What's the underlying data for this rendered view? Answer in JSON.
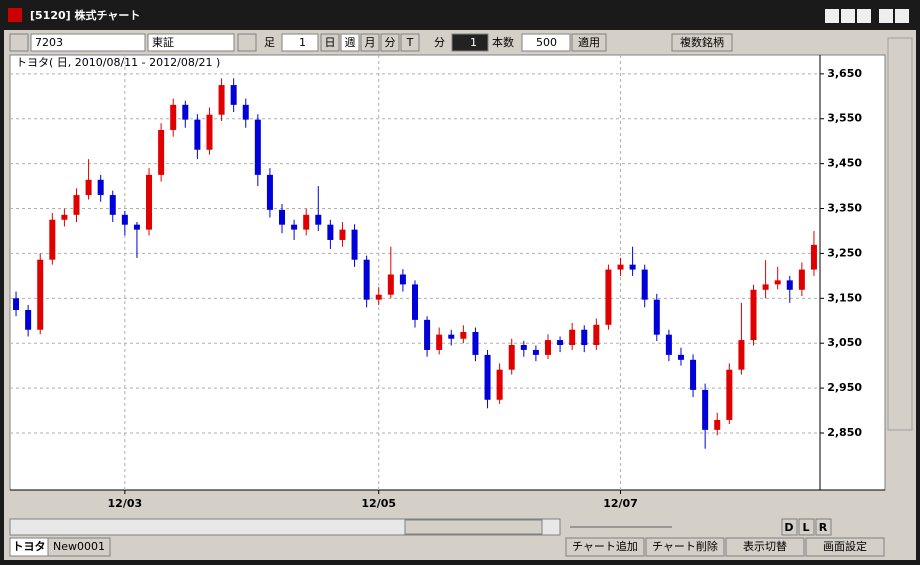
{
  "ui": {
    "window_title": "[5120] 株式チャート",
    "code": "7203",
    "market": "東証",
    "period_label": "足",
    "period_value": "1",
    "btn_day": "日",
    "btn_week": "週",
    "btn_month": "月",
    "btn_minute": "分",
    "btn_tick": "T",
    "minute_label": "分",
    "minute_value": "1",
    "count_label": "本数",
    "count_value": "500",
    "apply": "適用",
    "multi": "複数銘柄",
    "nav_d": "D",
    "nav_l": "L",
    "nav_r": "R",
    "tab_1": "トヨタ",
    "tab_2": "New0001",
    "add_chart": "チャート追加",
    "del_chart": "チャート削除",
    "toggle_view": "表示切替",
    "screen_settings": "画面設定"
  },
  "chart_data": {
    "type": "candlestick",
    "title": "トヨタ( 日, 2010/08/11 - 2012/08/21 )",
    "up_color": "#e00000",
    "down_color": "#0000d8",
    "grid": true,
    "categories": [
      null,
      null,
      null,
      null,
      null,
      null,
      null,
      null,
      null,
      "12/03",
      null,
      null,
      null,
      null,
      null,
      null,
      null,
      null,
      null,
      null,
      null,
      null,
      null,
      null,
      null,
      null,
      null,
      null,
      null,
      null,
      "12/05",
      null,
      null,
      null,
      null,
      null,
      null,
      null,
      null,
      null,
      null,
      null,
      null,
      null,
      null,
      null,
      null,
      null,
      null,
      null,
      "12/07",
      null,
      null,
      null,
      null,
      null,
      null,
      null,
      null,
      null,
      null,
      null,
      null,
      null,
      null,
      null,
      null
    ],
    "ohlc": [
      [
        3150,
        3165,
        3110,
        3124
      ],
      [
        3124,
        3135,
        3065,
        3080
      ],
      [
        3080,
        3250,
        3070,
        3236
      ],
      [
        3236,
        3340,
        3225,
        3325
      ],
      [
        3325,
        3350,
        3310,
        3336
      ],
      [
        3336,
        3395,
        3320,
        3380
      ],
      [
        3380,
        3460,
        3370,
        3414
      ],
      [
        3414,
        3425,
        3365,
        3380
      ],
      [
        3380,
        3390,
        3320,
        3336
      ],
      [
        3336,
        3345,
        3290,
        3314
      ],
      [
        3314,
        3320,
        3240,
        3303
      ],
      [
        3303,
        3440,
        3290,
        3425
      ],
      [
        3425,
        3540,
        3410,
        3525
      ],
      [
        3525,
        3595,
        3510,
        3581
      ],
      [
        3581,
        3590,
        3530,
        3548
      ],
      [
        3548,
        3560,
        3460,
        3481
      ],
      [
        3481,
        3575,
        3470,
        3559
      ],
      [
        3559,
        3640,
        3545,
        3625
      ],
      [
        3625,
        3640,
        3565,
        3581
      ],
      [
        3581,
        3595,
        3530,
        3548
      ],
      [
        3548,
        3560,
        3400,
        3425
      ],
      [
        3425,
        3440,
        3330,
        3347
      ],
      [
        3347,
        3360,
        3295,
        3314
      ],
      [
        3314,
        3325,
        3280,
        3303
      ],
      [
        3303,
        3350,
        3290,
        3336
      ],
      [
        3336,
        3400,
        3300,
        3314
      ],
      [
        3314,
        3325,
        3260,
        3280
      ],
      [
        3280,
        3320,
        3265,
        3303
      ],
      [
        3303,
        3315,
        3220,
        3236
      ],
      [
        3236,
        3245,
        3130,
        3147
      ],
      [
        3147,
        3175,
        3135,
        3158
      ],
      [
        3158,
        3265,
        3150,
        3203
      ],
      [
        3203,
        3215,
        3165,
        3181
      ],
      [
        3181,
        3190,
        3085,
        3102
      ],
      [
        3102,
        3110,
        3020,
        3035
      ],
      [
        3035,
        3085,
        3025,
        3069
      ],
      [
        3069,
        3080,
        3045,
        3060
      ],
      [
        3060,
        3090,
        3050,
        3075
      ],
      [
        3075,
        3085,
        3010,
        3024
      ],
      [
        3024,
        3035,
        2905,
        2924
      ],
      [
        2924,
        3005,
        2915,
        2991
      ],
      [
        2991,
        3060,
        2980,
        3046
      ],
      [
        3046,
        3055,
        3020,
        3035
      ],
      [
        3035,
        3045,
        3010,
        3024
      ],
      [
        3024,
        3070,
        3015,
        3057
      ],
      [
        3057,
        3065,
        3030,
        3046
      ],
      [
        3046,
        3095,
        3035,
        3080
      ],
      [
        3080,
        3090,
        3030,
        3046
      ],
      [
        3046,
        3105,
        3035,
        3091
      ],
      [
        3091,
        3225,
        3080,
        3214
      ],
      [
        3214,
        3240,
        3200,
        3225
      ],
      [
        3225,
        3265,
        3200,
        3214
      ],
      [
        3214,
        3225,
        3130,
        3147
      ],
      [
        3147,
        3160,
        3055,
        3069
      ],
      [
        3069,
        3080,
        3010,
        3024
      ],
      [
        3024,
        3040,
        3000,
        3013
      ],
      [
        3013,
        3025,
        2930,
        2946
      ],
      [
        2946,
        2960,
        2815,
        2857
      ],
      [
        2857,
        2895,
        2845,
        2879
      ],
      [
        2879,
        3005,
        2870,
        2991
      ],
      [
        2991,
        3140,
        2980,
        3057
      ],
      [
        3057,
        3180,
        3045,
        3169
      ],
      [
        3169,
        3235,
        3150,
        3181
      ],
      [
        3181,
        3220,
        3170,
        3190
      ],
      [
        3190,
        3200,
        3140,
        3169
      ],
      [
        3169,
        3230,
        3155,
        3214
      ],
      [
        3214,
        3300,
        3200,
        3269
      ]
    ],
    "ylim": [
      2723,
      3692
    ],
    "yticks": [
      {
        "value": 2850,
        "label": "2,850"
      },
      {
        "value": 2950,
        "label": "2,950"
      },
      {
        "value": 3050,
        "label": "3,050"
      },
      {
        "value": 3150,
        "label": "3,150"
      },
      {
        "value": 3250,
        "label": "3,250"
      },
      {
        "value": 3350,
        "label": "3,350"
      },
      {
        "value": 3450,
        "label": "3,450"
      },
      {
        "value": 3550,
        "label": "3,550"
      },
      {
        "value": 3650,
        "label": "3,650"
      }
    ]
  }
}
